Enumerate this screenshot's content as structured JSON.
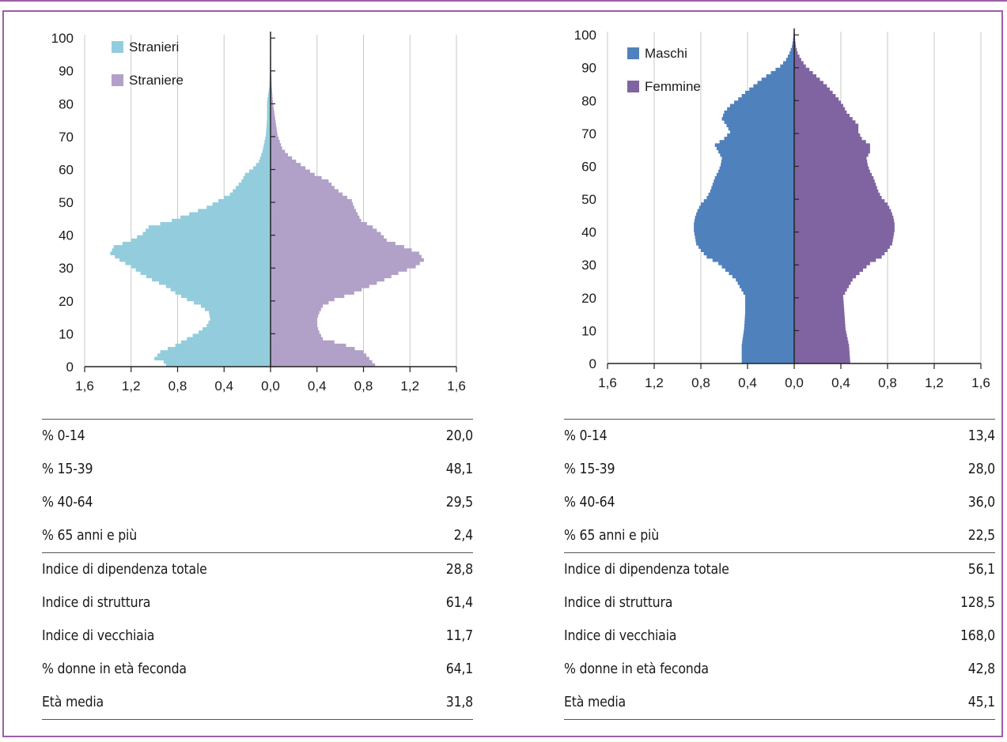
{
  "chart_data": [
    {
      "type": "bar",
      "subtype": "population-pyramid",
      "title": "",
      "xlabel": "",
      "ylabel": "",
      "ylim": [
        0,
        100
      ],
      "xlim": [
        -1.6,
        1.6
      ],
      "yticks": [
        "0",
        "10",
        "20",
        "30",
        "40",
        "50",
        "60",
        "70",
        "80",
        "90",
        "100"
      ],
      "xticks": [
        "1,6",
        "1,2",
        "0,8",
        "0,4",
        "0,0",
        "0,4",
        "0,8",
        "1,2",
        "1,6"
      ],
      "grid": "vertical",
      "legend": "top-left",
      "ages_min": 0,
      "ages_max": 100,
      "series": [
        {
          "name": "Stranieri",
          "side": "left",
          "color": "#93cddd",
          "profile": [
            [
              0,
              0.9
            ],
            [
              1,
              0.92
            ],
            [
              2,
              1.0
            ],
            [
              4,
              0.95
            ],
            [
              6,
              0.82
            ],
            [
              8,
              0.72
            ],
            [
              10,
              0.62
            ],
            [
              12,
              0.55
            ],
            [
              14,
              0.52
            ],
            [
              16,
              0.53
            ],
            [
              18,
              0.6
            ],
            [
              20,
              0.72
            ],
            [
              22,
              0.82
            ],
            [
              24,
              0.9
            ],
            [
              26,
              1.02
            ],
            [
              28,
              1.12
            ],
            [
              30,
              1.2
            ],
            [
              32,
              1.3
            ],
            [
              34,
              1.38
            ],
            [
              36,
              1.35
            ],
            [
              38,
              1.2
            ],
            [
              40,
              1.1
            ],
            [
              42,
              1.05
            ],
            [
              44,
              0.85
            ],
            [
              46,
              0.7
            ],
            [
              48,
              0.55
            ],
            [
              50,
              0.45
            ],
            [
              52,
              0.35
            ],
            [
              54,
              0.3
            ],
            [
              56,
              0.25
            ],
            [
              58,
              0.22
            ],
            [
              60,
              0.15
            ],
            [
              62,
              0.1
            ],
            [
              65,
              0.07
            ],
            [
              70,
              0.04
            ],
            [
              75,
              0.03
            ],
            [
              80,
              0.03
            ],
            [
              85,
              0.01
            ],
            [
              90,
              0.005
            ],
            [
              100,
              0.002
            ]
          ]
        },
        {
          "name": "Straniere",
          "side": "right",
          "color": "#b1a0c7",
          "profile": [
            [
              0,
              0.9
            ],
            [
              2,
              0.85
            ],
            [
              4,
              0.8
            ],
            [
              6,
              0.65
            ],
            [
              8,
              0.45
            ],
            [
              10,
              0.42
            ],
            [
              12,
              0.4
            ],
            [
              14,
              0.4
            ],
            [
              16,
              0.42
            ],
            [
              18,
              0.45
            ],
            [
              20,
              0.55
            ],
            [
              22,
              0.72
            ],
            [
              24,
              0.85
            ],
            [
              26,
              0.98
            ],
            [
              28,
              1.1
            ],
            [
              30,
              1.25
            ],
            [
              32,
              1.32
            ],
            [
              34,
              1.28
            ],
            [
              36,
              1.15
            ],
            [
              38,
              1.0
            ],
            [
              40,
              0.95
            ],
            [
              42,
              0.88
            ],
            [
              44,
              0.78
            ],
            [
              46,
              0.75
            ],
            [
              48,
              0.72
            ],
            [
              50,
              0.7
            ],
            [
              52,
              0.62
            ],
            [
              54,
              0.55
            ],
            [
              56,
              0.5
            ],
            [
              58,
              0.38
            ],
            [
              60,
              0.3
            ],
            [
              62,
              0.22
            ],
            [
              64,
              0.15
            ],
            [
              66,
              0.1
            ],
            [
              68,
              0.08
            ],
            [
              70,
              0.06
            ],
            [
              75,
              0.04
            ],
            [
              80,
              0.02
            ],
            [
              85,
              0.01
            ],
            [
              90,
              0.005
            ],
            [
              100,
              0.002
            ]
          ]
        }
      ]
    },
    {
      "type": "bar",
      "subtype": "population-pyramid",
      "title": "",
      "xlabel": "",
      "ylabel": "",
      "ylim": [
        0,
        100
      ],
      "xlim": [
        -1.6,
        1.6
      ],
      "yticks": [
        "0",
        "10",
        "20",
        "30",
        "40",
        "50",
        "60",
        "70",
        "80",
        "90",
        "100"
      ],
      "xticks": [
        "1,6",
        "1,2",
        "0,8",
        "0,4",
        "0,0",
        "0,4",
        "0,8",
        "1,2",
        "1,6"
      ],
      "grid": "vertical",
      "legend": "top-left",
      "ages_min": 0,
      "ages_max": 100,
      "series": [
        {
          "name": "Maschi",
          "side": "left",
          "color": "#4f81bd",
          "profile": [
            [
              0,
              0.45
            ],
            [
              5,
              0.45
            ],
            [
              10,
              0.43
            ],
            [
              15,
              0.42
            ],
            [
              20,
              0.42
            ],
            [
              25,
              0.5
            ],
            [
              30,
              0.65
            ],
            [
              32,
              0.75
            ],
            [
              34,
              0.8
            ],
            [
              36,
              0.84
            ],
            [
              38,
              0.85
            ],
            [
              40,
              0.86
            ],
            [
              42,
              0.86
            ],
            [
              44,
              0.85
            ],
            [
              46,
              0.83
            ],
            [
              48,
              0.8
            ],
            [
              50,
              0.75
            ],
            [
              52,
              0.72
            ],
            [
              54,
              0.7
            ],
            [
              56,
              0.68
            ],
            [
              58,
              0.65
            ],
            [
              60,
              0.63
            ],
            [
              62,
              0.62
            ],
            [
              64,
              0.65
            ],
            [
              66,
              0.68
            ],
            [
              68,
              0.6
            ],
            [
              70,
              0.55
            ],
            [
              72,
              0.58
            ],
            [
              74,
              0.62
            ],
            [
              76,
              0.6
            ],
            [
              78,
              0.55
            ],
            [
              80,
              0.48
            ],
            [
              82,
              0.42
            ],
            [
              84,
              0.35
            ],
            [
              86,
              0.28
            ],
            [
              88,
              0.2
            ],
            [
              90,
              0.12
            ],
            [
              92,
              0.07
            ],
            [
              94,
              0.04
            ],
            [
              96,
              0.02
            ],
            [
              98,
              0.01
            ],
            [
              100,
              0.005
            ]
          ]
        },
        {
          "name": "Femmine",
          "side": "right",
          "color": "#8064a2",
          "profile": [
            [
              0,
              0.48
            ],
            [
              5,
              0.47
            ],
            [
              10,
              0.44
            ],
            [
              15,
              0.43
            ],
            [
              20,
              0.42
            ],
            [
              25,
              0.5
            ],
            [
              30,
              0.65
            ],
            [
              32,
              0.75
            ],
            [
              34,
              0.8
            ],
            [
              36,
              0.84
            ],
            [
              38,
              0.85
            ],
            [
              40,
              0.86
            ],
            [
              42,
              0.86
            ],
            [
              44,
              0.85
            ],
            [
              46,
              0.83
            ],
            [
              48,
              0.8
            ],
            [
              50,
              0.75
            ],
            [
              52,
              0.72
            ],
            [
              54,
              0.7
            ],
            [
              56,
              0.68
            ],
            [
              58,
              0.65
            ],
            [
              60,
              0.63
            ],
            [
              62,
              0.62
            ],
            [
              64,
              0.65
            ],
            [
              66,
              0.65
            ],
            [
              68,
              0.58
            ],
            [
              70,
              0.55
            ],
            [
              72,
              0.55
            ],
            [
              74,
              0.5
            ],
            [
              76,
              0.45
            ],
            [
              78,
              0.42
            ],
            [
              80,
              0.38
            ],
            [
              82,
              0.33
            ],
            [
              84,
              0.28
            ],
            [
              86,
              0.22
            ],
            [
              88,
              0.16
            ],
            [
              90,
              0.1
            ],
            [
              92,
              0.06
            ],
            [
              94,
              0.03
            ],
            [
              96,
              0.015
            ],
            [
              98,
              0.008
            ],
            [
              100,
              0.004
            ]
          ]
        }
      ]
    }
  ],
  "tables": [
    {
      "rows": [
        {
          "label": "% 0-14",
          "value": "20,0"
        },
        {
          "label": "% 15-39",
          "value": "48,1"
        },
        {
          "label": "% 40-64",
          "value": "29,5"
        },
        {
          "label": "% 65 anni e più",
          "value": "2,4"
        },
        {
          "label": "Indice di dipendenza totale",
          "value": "28,8"
        },
        {
          "label": "Indice di struttura",
          "value": "61,4"
        },
        {
          "label": "Indice di vecchiaia",
          "value": "11,7"
        },
        {
          "label": "% donne in età feconda",
          "value": "64,1"
        },
        {
          "label": "Età media",
          "value": "31,8"
        }
      ]
    },
    {
      "rows": [
        {
          "label": "% 0-14",
          "value": "13,4"
        },
        {
          "label": "% 15-39",
          "value": "28,0"
        },
        {
          "label": "% 40-64",
          "value": "36,0"
        },
        {
          "label": "% 65 anni e più",
          "value": "22,5"
        },
        {
          "label": "Indice di dipendenza totale",
          "value": "56,1"
        },
        {
          "label": "Indice di struttura",
          "value": "128,5"
        },
        {
          "label": "Indice di vecchiaia",
          "value": "168,0"
        },
        {
          "label": "% donne in età feconda",
          "value": "42,8"
        },
        {
          "label": "Età media",
          "value": "45,1"
        }
      ]
    }
  ]
}
